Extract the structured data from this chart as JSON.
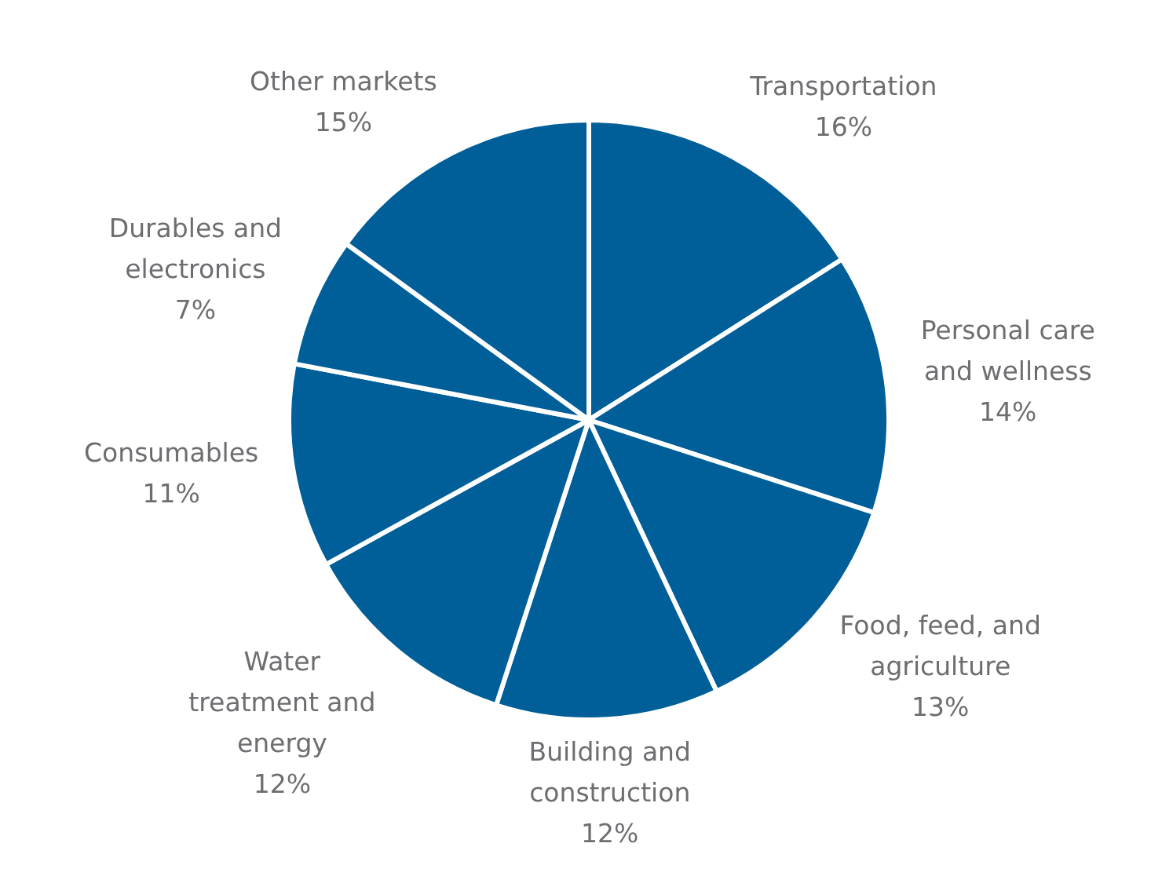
{
  "chart_data": {
    "type": "pie",
    "categories": [
      "Transportation",
      "Personal care and wellness",
      "Food, feed, and agriculture",
      "Building and construction",
      "Water treatment and energy",
      "Consumables",
      "Durables and electronics",
      "Other markets"
    ],
    "values": [
      16,
      14,
      13,
      12,
      12,
      11,
      7,
      15
    ],
    "colors": [
      "#005f99",
      "#005f99",
      "#005f99",
      "#005f99",
      "#005f99",
      "#005f99",
      "#005f99",
      "#005f99"
    ],
    "value_labels": [
      "16%",
      "14%",
      "13%",
      "12%",
      "12%",
      "11%",
      "7%",
      "15%"
    ],
    "legend": false
  }
}
